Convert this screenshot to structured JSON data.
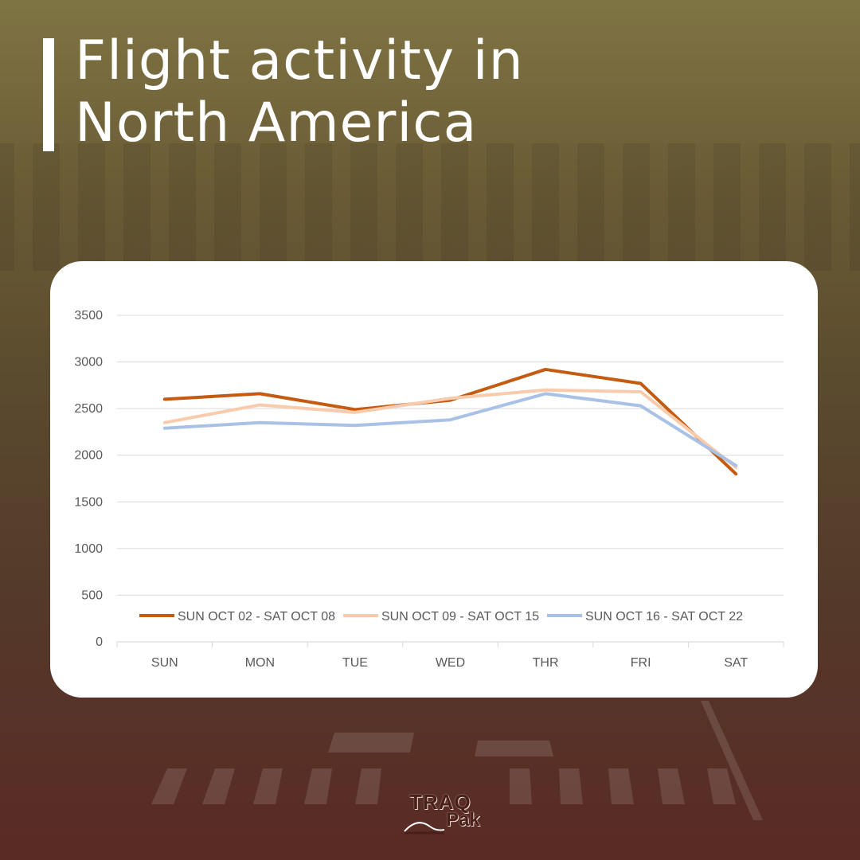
{
  "header": {
    "title_line1": "Flight activity in",
    "title_line2": "North America"
  },
  "brand": {
    "logo_line1": "TRAQ",
    "logo_line2": "Pak"
  },
  "colors": {
    "series1": "#c55a11",
    "series2": "#f8cbad",
    "series3": "#a9c1e6",
    "grid": "#d9d9d9"
  },
  "chart_data": {
    "type": "line",
    "title": "Flight activity in North America",
    "xlabel": "",
    "ylabel": "",
    "categories": [
      "SUN",
      "MON",
      "TUE",
      "WED",
      "THR",
      "FRI",
      "SAT"
    ],
    "ylim": [
      0,
      3500
    ],
    "yticks": [
      0,
      500,
      1000,
      1500,
      2000,
      2500,
      3000,
      3500
    ],
    "legend_position": "bottom-inside",
    "grid": true,
    "series": [
      {
        "name": "SUN OCT 02 - SAT OCT 08",
        "values": [
          2600,
          2660,
          2490,
          2590,
          2920,
          2770,
          1800
        ]
      },
      {
        "name": "SUN OCT 09 - SAT OCT 15",
        "values": [
          2350,
          2540,
          2460,
          2610,
          2700,
          2680,
          1870
        ]
      },
      {
        "name": "SUN OCT 16 - SAT OCT 22",
        "values": [
          2290,
          2350,
          2320,
          2380,
          2660,
          2530,
          1890
        ]
      }
    ]
  }
}
